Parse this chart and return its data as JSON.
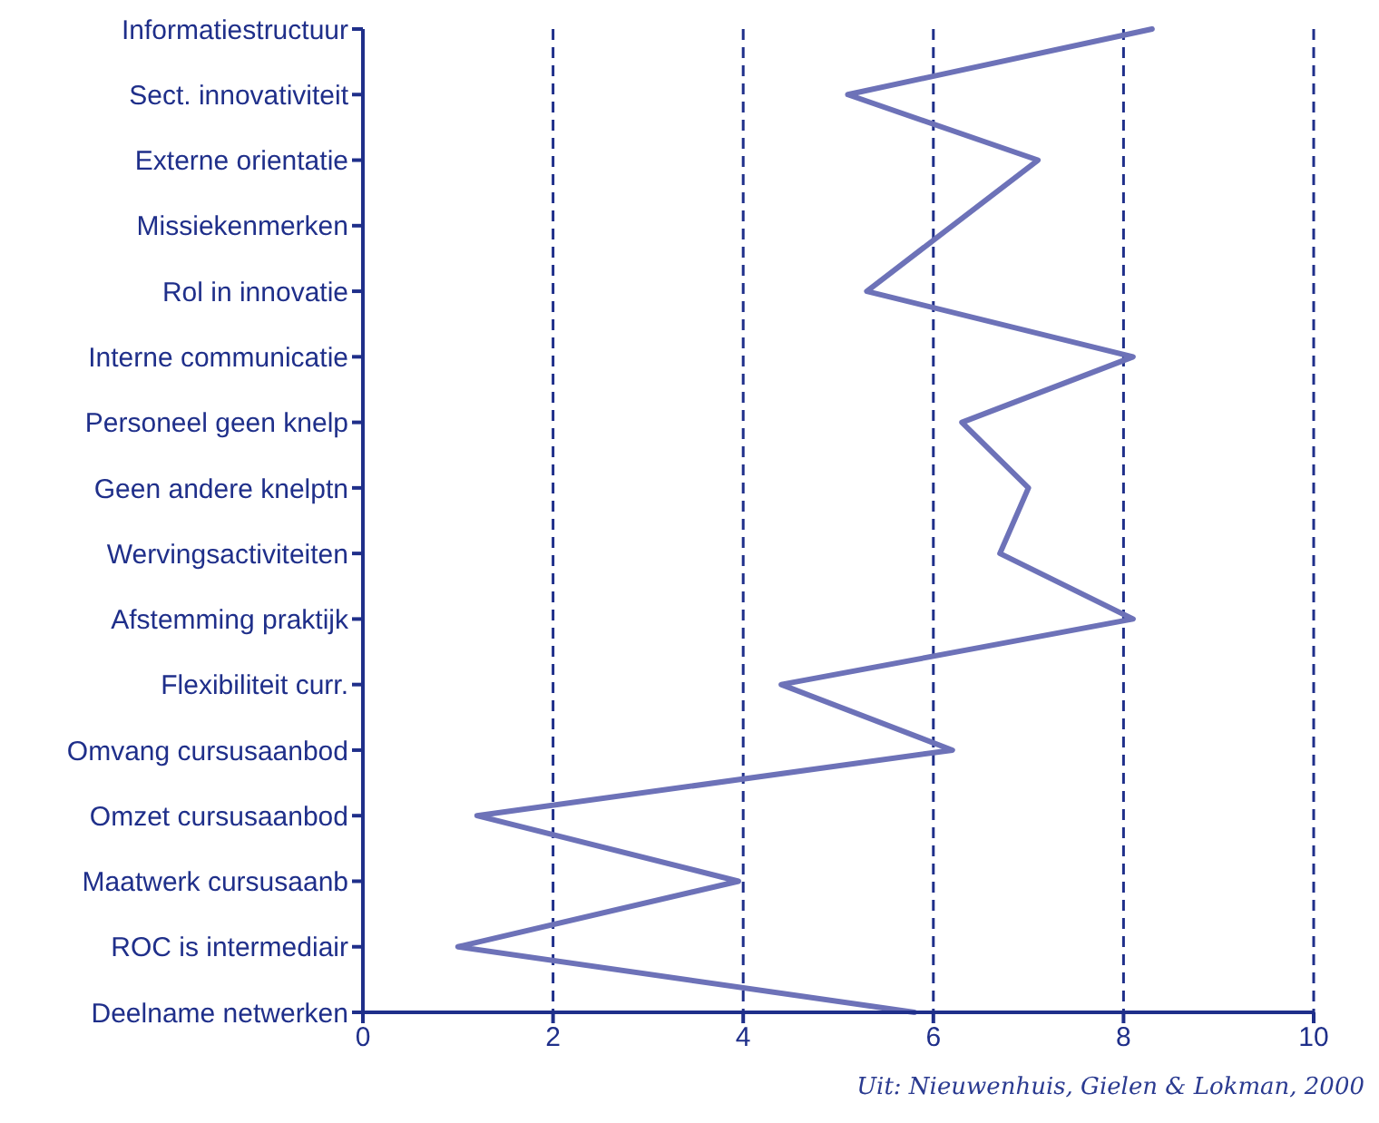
{
  "chart_data": {
    "type": "line",
    "orientation": "horizontal",
    "categories": [
      "Informatiestructuur",
      "Sect. innovativiteit",
      "Externe orientatie",
      "Missiekenmerken",
      "Rol in innovatie",
      "Interne communicatie",
      "Personeel geen knelp",
      "Geen andere knelptn",
      "Wervingsactiviteiten",
      "Afstemming praktijk",
      "Flexibiliteit curr.",
      "Omvang cursusaanbod",
      "Omzet cursusaanbod",
      "Maatwerk cursusaanb",
      "ROC is intermediair",
      "Deelname netwerken"
    ],
    "values": [
      8.3,
      5.1,
      7.1,
      6.2,
      5.3,
      8.1,
      6.3,
      7.0,
      6.7,
      8.1,
      4.4,
      6.2,
      1.2,
      3.95,
      1.0,
      5.8
    ],
    "color": "#6d72b8",
    "xlim": [
      0,
      10
    ],
    "xticks": [
      0,
      2,
      4,
      6,
      8,
      10
    ],
    "grid": "x",
    "marker": "none",
    "line_style": "solid",
    "annotations": [
      "Uit: Nieuwenhuis, Gielen & Lokman, 2000"
    ]
  }
}
